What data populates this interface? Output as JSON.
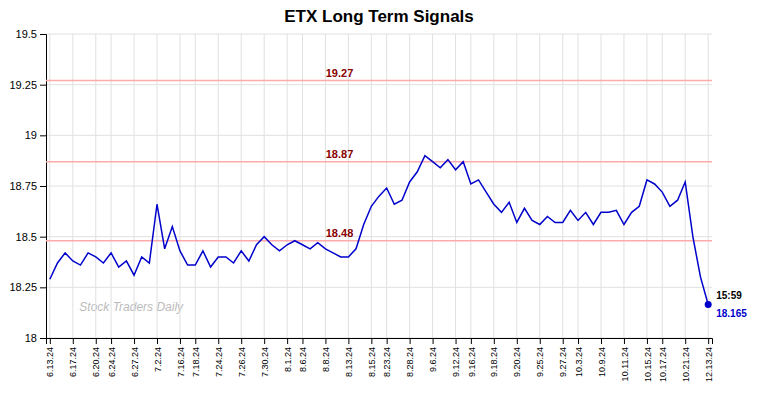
{
  "chart_data": {
    "type": "line",
    "title": "ETX Long Term Signals",
    "watermark": "Stock Traders Daily",
    "color": "#0000cc",
    "grid": true,
    "ylim": [
      18,
      19.5
    ],
    "yticks": [
      18,
      18.25,
      18.5,
      18.75,
      19,
      19.25,
      19.5
    ],
    "categories": [
      "6.13.24",
      null,
      null,
      "6.17.24",
      null,
      null,
      "6.20.24",
      null,
      "6.24.24",
      null,
      null,
      "6.27.24",
      null,
      null,
      "7.2.24",
      null,
      null,
      "7.16.24",
      null,
      "7.18.24",
      null,
      null,
      "7.24.24",
      null,
      null,
      "7.26.24",
      null,
      null,
      "7.30.24",
      null,
      null,
      "8.1.24",
      null,
      "8.6.24",
      null,
      null,
      "8.8.24",
      null,
      null,
      "8.13.24",
      null,
      null,
      "8.15.24",
      null,
      "8.23.24",
      null,
      null,
      "8.28.24",
      null,
      null,
      "9.6.24",
      null,
      null,
      "9.12.24",
      null,
      "9.16.24",
      null,
      null,
      "9.18.24",
      null,
      null,
      "9.20.24",
      null,
      null,
      "9.25.24",
      null,
      null,
      "9.27.24",
      null,
      "10.3.24",
      null,
      null,
      "10.9.24",
      null,
      null,
      "10.11.24",
      null,
      null,
      "10.15.24",
      null,
      "10.17.24",
      null,
      null,
      "10.21.24",
      null,
      null,
      "12.13.24"
    ],
    "values": [
      18.29,
      18.37,
      18.42,
      18.38,
      18.36,
      18.42,
      18.4,
      18.37,
      18.42,
      18.35,
      18.38,
      18.31,
      18.4,
      18.37,
      18.66,
      18.44,
      18.55,
      18.43,
      18.36,
      18.36,
      18.43,
      18.35,
      18.4,
      18.4,
      18.37,
      18.43,
      18.38,
      18.46,
      18.5,
      18.46,
      18.43,
      18.46,
      18.48,
      18.46,
      18.44,
      18.47,
      18.44,
      18.42,
      18.4,
      18.4,
      18.44,
      18.56,
      18.65,
      18.7,
      18.74,
      18.66,
      18.68,
      18.77,
      18.82,
      18.9,
      18.87,
      18.84,
      18.88,
      18.83,
      18.87,
      18.76,
      18.78,
      18.72,
      18.66,
      18.62,
      18.67,
      18.57,
      18.64,
      18.58,
      18.56,
      18.6,
      18.57,
      18.57,
      18.63,
      18.58,
      18.62,
      18.56,
      18.62,
      18.62,
      18.63,
      18.56,
      18.62,
      18.65,
      18.78,
      18.76,
      18.72,
      18.65,
      18.68,
      18.77,
      18.5,
      18.3,
      18.165
    ],
    "hlines": [
      {
        "y": 19.27,
        "label": "19.27",
        "color": "#ffaaaa",
        "label_color": "#880000"
      },
      {
        "y": 18.87,
        "label": "18.87",
        "color": "#ffaaaa",
        "label_color": "#880000"
      },
      {
        "y": 18.48,
        "label": "18.48",
        "color": "#ffaaaa",
        "label_color": "#880000"
      }
    ],
    "annotations": [
      {
        "text": "15:59"
      },
      {
        "text": "18.165",
        "value": 18.165,
        "color": "#0000cc"
      }
    ]
  }
}
